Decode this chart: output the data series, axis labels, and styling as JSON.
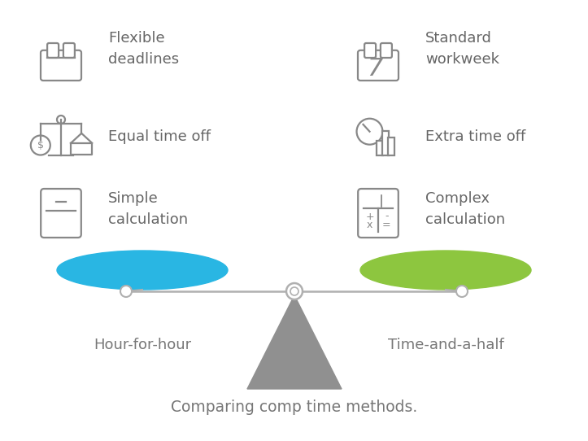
{
  "bg_color": "#ffffff",
  "title": "Comparing comp time methods.",
  "title_fontsize": 13.5,
  "label_left": "Hour-for-hour",
  "label_right": "Time-and-a-half",
  "label_fontsize": 13,
  "label_color": "#777777",
  "left_texts": [
    "Flexible\ndeadlines",
    "Equal time off",
    "Simple\ncalculation"
  ],
  "right_texts": [
    "Standard\nworkweek",
    "Extra time off",
    "Complex\ncalculation"
  ],
  "pan_left_color": "#29b6e3",
  "pan_right_color": "#8dc63f",
  "beam_color": "#b0b0b0",
  "fulcrum_color": "#909090",
  "icon_color": "#888888",
  "text_color": "#666666",
  "text_fontsize": 13
}
